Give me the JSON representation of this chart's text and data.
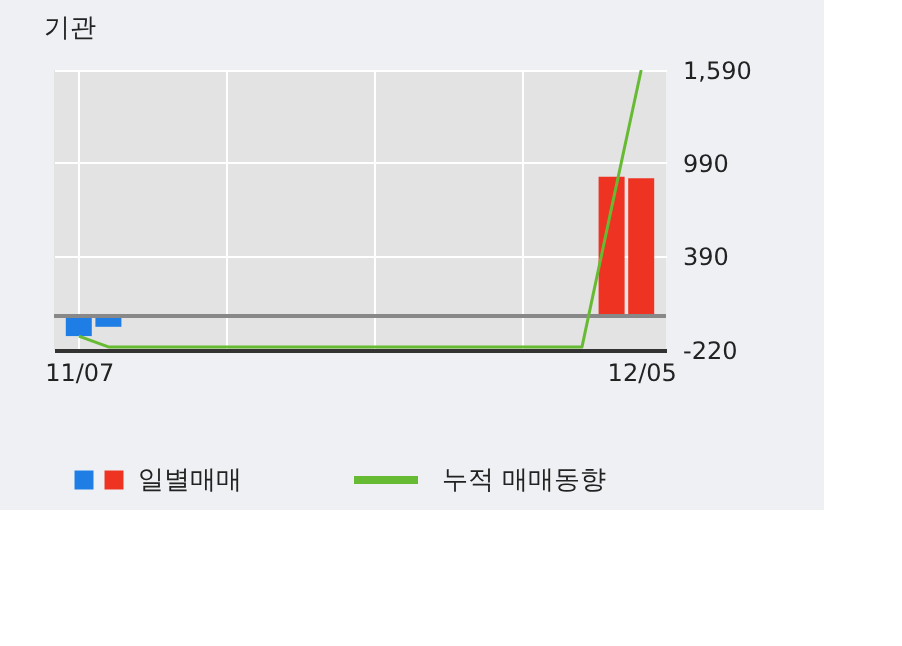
{
  "chart_data": {
    "type": "bar",
    "title": "기관",
    "categories": [
      "11/07",
      null,
      null,
      null,
      null,
      null,
      null,
      null,
      null,
      null,
      null,
      null,
      null,
      null,
      null,
      null,
      null,
      null,
      null,
      "12/05"
    ],
    "series": [
      {
        "name": "일별매매",
        "values": [
          -130,
          -70,
          0,
          0,
          0,
          0,
          0,
          0,
          0,
          0,
          0,
          0,
          0,
          0,
          0,
          0,
          0,
          0,
          900,
          890
        ],
        "colors": [
          "#1f7ee6",
          "#1f7ee6",
          "#1f7ee6",
          "#1f7ee6",
          "#1f7ee6",
          "#1f7ee6",
          "#1f7ee6",
          "#1f7ee6",
          "#1f7ee6",
          "#1f7ee6",
          "#1f7ee6",
          "#1f7ee6",
          "#1f7ee6",
          "#1f7ee6",
          "#1f7ee6",
          "#1f7ee6",
          "#1f7ee6",
          "#1f7ee6",
          "#ee3322",
          "#ee3322"
        ]
      },
      {
        "name": "누적 매매동향",
        "type": "line",
        "color": "#66bb33",
        "values": [
          -130,
          -200,
          -200,
          -200,
          -200,
          -200,
          -200,
          -200,
          -200,
          -200,
          -200,
          -200,
          -200,
          -200,
          -200,
          -200,
          -200,
          -200,
          700,
          1590
        ]
      }
    ],
    "ylim": [
      -220,
      1590
    ],
    "yticks": [
      {
        "value": 1590,
        "label": "1,590"
      },
      {
        "value": 990,
        "label": "990"
      },
      {
        "value": 390,
        "label": "390"
      },
      {
        "value": -220,
        "label": "-220"
      }
    ],
    "ref_lines": [
      {
        "axis": "y",
        "value": 0,
        "color": "#888888"
      }
    ],
    "grid": true,
    "legend": "bottom",
    "marker": "none",
    "line_style": "solid"
  }
}
